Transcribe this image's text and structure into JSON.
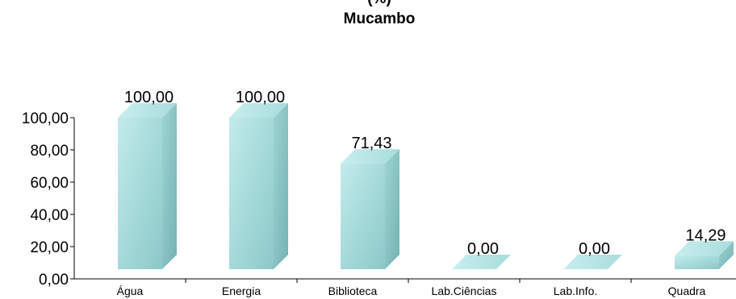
{
  "chart_data": {
    "type": "bar",
    "title": "(%)",
    "subtitle": "Mucambo",
    "categories": [
      "Água",
      "Energia",
      "Biblioteca",
      "Lab.Ciências",
      "Lab.Info.",
      "Quadra"
    ],
    "values": [
      100.0,
      100.0,
      71.43,
      0.0,
      0.0,
      14.29
    ],
    "value_labels": [
      "100,00",
      "100,00",
      "71,43",
      "0,00",
      "0,00",
      "14,29"
    ],
    "y_tick_labels": [
      "0,00",
      "20,00",
      "40,00",
      "60,00",
      "80,00",
      "100,00"
    ],
    "y_ticks": [
      0,
      20,
      40,
      60,
      80,
      100
    ],
    "ylim": [
      0,
      100
    ],
    "xlabel": "",
    "ylabel": "",
    "grid": false,
    "legend": "none",
    "bar_style": "3d",
    "colors": {
      "front": "#a8dcdc",
      "side": "#84c4c4",
      "top": "#c6ecec",
      "front_dark": "#8ecece"
    }
  }
}
